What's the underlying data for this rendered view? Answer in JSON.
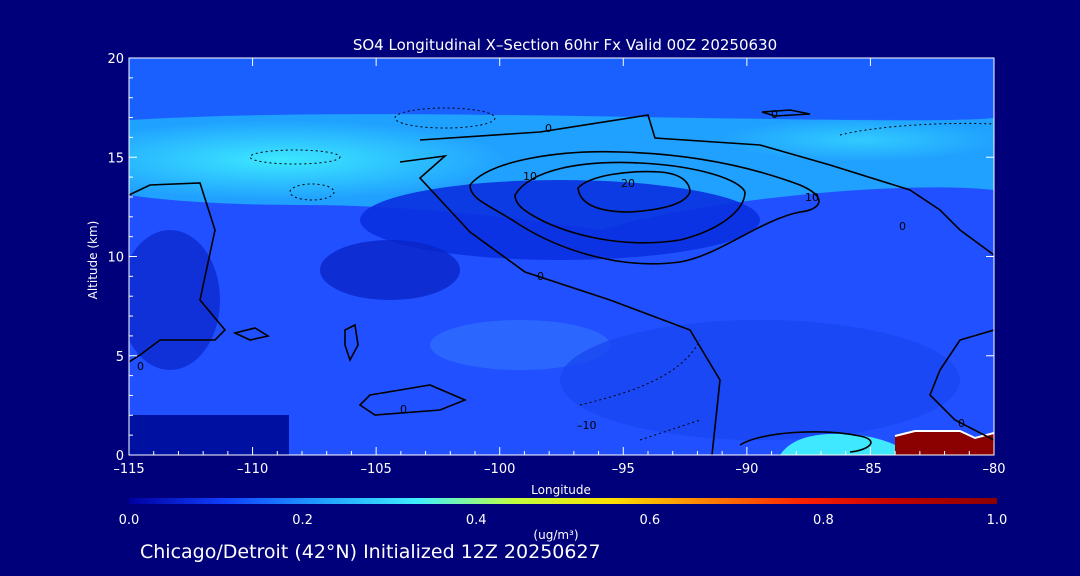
{
  "chart_data": {
    "type": "heatmap",
    "title": "SO4 Longitudinal X–Section 60hr  Fx Valid 00Z 20250630",
    "xlabel": "Longitude",
    "ylabel": "Altitude (km)",
    "xlim": [
      -115,
      -80
    ],
    "ylim": [
      0,
      20
    ],
    "x_ticks": [
      -115,
      -110,
      -105,
      -100,
      -95,
      -90,
      -85,
      -80
    ],
    "x_tick_labels": [
      "–115",
      "–110",
      "–105",
      "–100",
      "–95",
      "–90",
      "–85",
      "–80"
    ],
    "y_ticks": [
      0,
      5,
      10,
      15,
      20
    ],
    "y_tick_labels": [
      "0",
      "5",
      "10",
      "15",
      "20"
    ],
    "colorbar": {
      "min": 0.0,
      "max": 1.0,
      "ticks": [
        0.0,
        0.2,
        0.4,
        0.6,
        0.8,
        1.0
      ],
      "tick_labels": [
        "0.0",
        "0.2",
        "0.4",
        "0.6",
        "0.8",
        "1.0"
      ],
      "unit_label": "(ug/m³)",
      "colors": [
        "#0000a0",
        "#1040ff",
        "#20a0ff",
        "#40f0ff",
        "#c0ff40",
        "#ffe000",
        "#ff8000",
        "#ff2000",
        "#c00000",
        "#8b0000"
      ]
    },
    "concentration_field": {
      "description_values_ug_m3": [
        {
          "lon_range": [
            -115,
            -80
          ],
          "alt_range": [
            16,
            20
          ],
          "value": 0.15
        },
        {
          "lon_range": [
            -115,
            -97
          ],
          "alt_range": [
            13,
            16
          ],
          "value": 0.35
        },
        {
          "lon_range": [
            -97,
            -80
          ],
          "alt_range": [
            13,
            16
          ],
          "value": 0.25
        },
        {
          "lon_range": [
            -115,
            -80
          ],
          "alt_range": [
            9,
            13
          ],
          "value": 0.12
        },
        {
          "lon_range": [
            -115,
            -80
          ],
          "alt_range": [
            0,
            9
          ],
          "value": 0.1
        },
        {
          "lon_range": [
            -88,
            -84
          ],
          "alt_range": [
            0,
            1
          ],
          "value": 0.35
        },
        {
          "lon_range": [
            -84,
            -80
          ],
          "alt_range": [
            0,
            1
          ],
          "value": 1.0
        }
      ]
    },
    "contour_labels": [
      "0",
      "10",
      "20",
      "10",
      "0",
      "0",
      "0",
      "–10",
      "0",
      "0",
      "0"
    ],
    "colors": {
      "background": "#00007a",
      "contour": "#000000",
      "text": "#ffffff"
    }
  },
  "footer": {
    "caption": "Chicago/Detroit (42°N) Initialized 12Z 20250627"
  }
}
